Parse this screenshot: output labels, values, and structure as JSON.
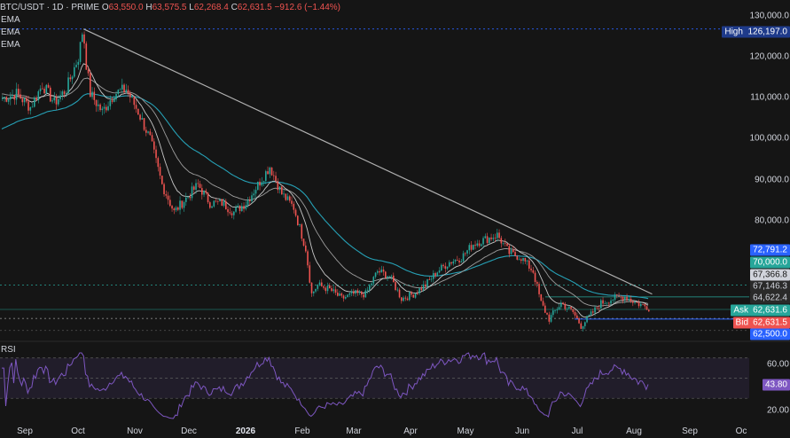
{
  "header": {
    "symbol": "BTC/USDT · 1D · PRIME",
    "o_label": "O",
    "o_value": "63,550.0",
    "h_label": "H",
    "h_value": "63,575.5",
    "l_label": "L",
    "l_value": "62,268.4",
    "c_label": "C",
    "c_value": "62,631.5",
    "change": "−912.6 (−1.44%)"
  },
  "indicators": [
    "EMA",
    "EMA",
    "EMA"
  ],
  "rsi_label": "RSI",
  "price_axis": [
    "130,000.0",
    "120,000.0",
    "110,000.0",
    "100,000.0",
    "90,000.0",
    "80,000.0",
    "70,000.0"
  ],
  "rsi_axis": [
    "60.00",
    "20.00"
  ],
  "time_axis": [
    "Sep",
    "Oct",
    "Nov",
    "Dec",
    "2026",
    "Feb",
    "Mar",
    "Apr",
    "May",
    "Jun",
    "Jul",
    "Aug",
    "Sep",
    "Oc"
  ],
  "price_tags": {
    "high_label": "High",
    "high_value": "126,197.0",
    "ema_slow": "72,791.2",
    "ema_mid": "67,366.8",
    "ema_fast": "67,146.3",
    "level": "64,622.4",
    "ask_label": "Ask",
    "ask_value": "62,631.6",
    "bid_label": "Bid",
    "bid_value": "62,631.5",
    "low_level": "62,500.0",
    "rsi_value": "43.80"
  },
  "colors": {
    "up": "#26a69a",
    "down": "#ef5350",
    "background": "#151515",
    "ema_slow": "#26a0b5",
    "ema_mid": "#9e9e9e",
    "ema_fast": "#c8c8c8",
    "trendline": "#b0b0b0",
    "rsi": "#7e57c2",
    "high_tag": "#1e3a8a",
    "ema_slow_tag": "#2962ff",
    "ask_tag": "#26a69a",
    "bid_tag": "#ef5350",
    "low_tag": "#2962ff",
    "level_green": "#26a69a"
  },
  "chart_data": {
    "type": "candlestick",
    "series": [
      {
        "name": "BTC/USDT",
        "ohlc_anchor_points": [
          [
            0,
            111000
          ],
          [
            7,
            112000
          ],
          [
            14,
            109000
          ],
          [
            20,
            114000
          ],
          [
            26,
            110000
          ],
          [
            32,
            113000
          ],
          [
            38,
            120000
          ],
          [
            40,
            125000
          ],
          [
            44,
            112000
          ],
          [
            50,
            108000
          ],
          [
            56,
            112000
          ],
          [
            62,
            113000
          ],
          [
            68,
            108000
          ],
          [
            74,
            102000
          ],
          [
            80,
            92000
          ],
          [
            86,
            86000
          ],
          [
            92,
            89000
          ],
          [
            98,
            92000
          ],
          [
            104,
            88000
          ],
          [
            110,
            88000
          ],
          [
            116,
            86000
          ],
          [
            122,
            88000
          ],
          [
            128,
            92000
          ],
          [
            134,
            96000
          ],
          [
            140,
            90000
          ],
          [
            146,
            87000
          ],
          [
            152,
            78000
          ],
          [
            155,
            68000
          ],
          [
            158,
            70000
          ],
          [
            164,
            69000
          ],
          [
            170,
            67000
          ],
          [
            176,
            68000
          ],
          [
            182,
            68000
          ],
          [
            188,
            73000
          ],
          [
            194,
            72000
          ],
          [
            200,
            67000
          ],
          [
            206,
            68000
          ],
          [
            212,
            70000
          ],
          [
            218,
            73000
          ],
          [
            224,
            75000
          ],
          [
            230,
            76000
          ],
          [
            236,
            79000
          ],
          [
            242,
            80000
          ],
          [
            248,
            81000
          ],
          [
            254,
            77000
          ],
          [
            260,
            76000
          ],
          [
            266,
            73000
          ],
          [
            270,
            66000
          ],
          [
            274,
            62500
          ],
          [
            280,
            66000
          ],
          [
            286,
            64000
          ],
          [
            290,
            61000
          ],
          [
            294,
            63000
          ],
          [
            300,
            66000
          ],
          [
            306,
            67000
          ],
          [
            312,
            67500
          ],
          [
            318,
            66000
          ],
          [
            324,
            65000
          ]
        ]
      }
    ],
    "ema_series": [
      "EMA",
      "EMA",
      "EMA"
    ],
    "y_range": [
      58000,
      131000
    ],
    "rsi_range": [
      10,
      75
    ],
    "rsi_value": 43.8,
    "x_labels": [
      "Sep",
      "Oct",
      "Nov",
      "Dec",
      "2026",
      "Feb",
      "Mar",
      "Apr",
      "May",
      "Jun",
      "Jul",
      "Aug",
      "Sep",
      "Oc"
    ],
    "high": 126197.0,
    "levels": [
      70000.0,
      67366.8,
      64622.4,
      62500.0
    ],
    "trendline": [
      [
        41,
        126197
      ],
      [
        326,
        68000
      ]
    ]
  }
}
